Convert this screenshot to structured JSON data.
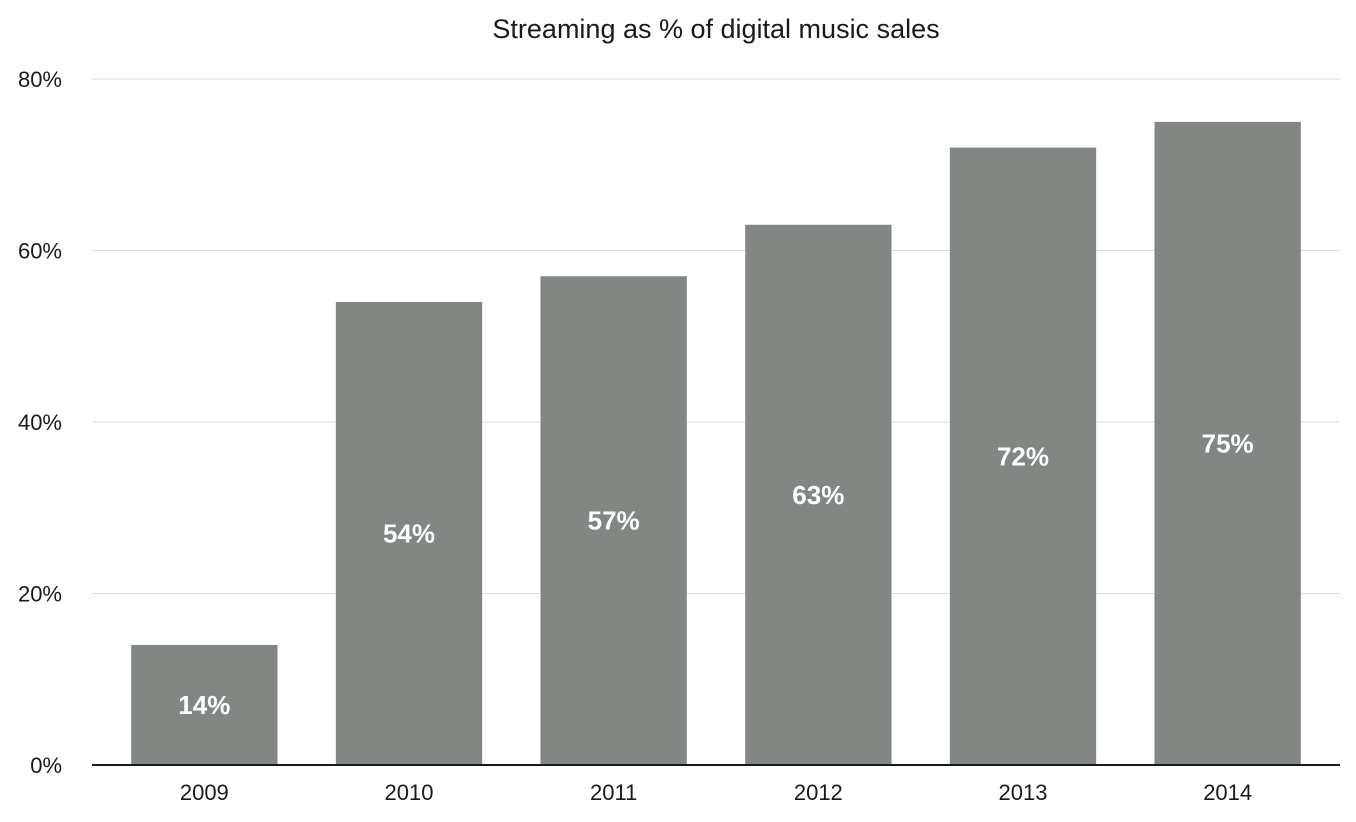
{
  "chart_data": {
    "type": "bar",
    "title": "Streaming as % of digital music sales",
    "categories": [
      "2009",
      "2010",
      "2011",
      "2012",
      "2013",
      "2014"
    ],
    "values": [
      14,
      54,
      57,
      63,
      72,
      75
    ],
    "data_labels": [
      "14%",
      "54%",
      "57%",
      "63%",
      "72%",
      "75%"
    ],
    "ylim": [
      0,
      80
    ],
    "yticks": [
      0,
      20,
      40,
      60,
      80
    ],
    "ytick_labels": [
      "0%",
      "20%",
      "40%",
      "60%",
      "80%"
    ],
    "grid": true,
    "legend": "none",
    "colors": {
      "bar": "#828784",
      "grid": "#d9d9d9",
      "axis": "#1a1a1a",
      "data_label": "#ffffff"
    }
  }
}
